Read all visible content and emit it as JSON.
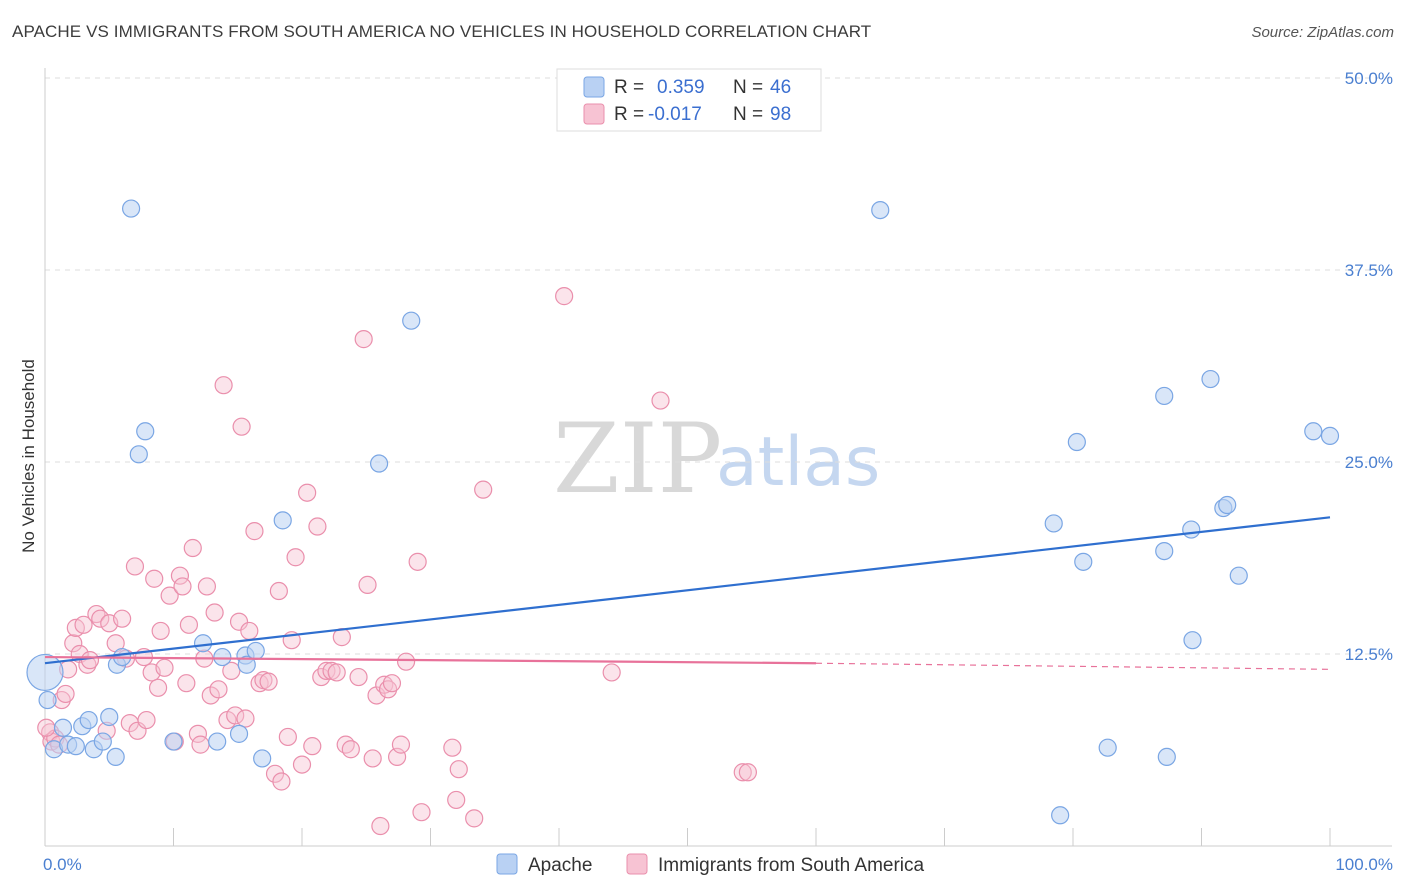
{
  "title": "APACHE VS IMMIGRANTS FROM SOUTH AMERICA NO VEHICLES IN HOUSEHOLD CORRELATION CHART",
  "source": "Source: ZipAtlas.com",
  "watermark": {
    "zip": "ZIP",
    "atlas": "atlas"
  },
  "legend": {
    "r_label": "R =",
    "n_label": "N =",
    "rows": [
      {
        "r": "0.359",
        "n": "46"
      },
      {
        "r": "-0.017",
        "n": "98"
      }
    ]
  },
  "colors": {
    "apache_fill": "#b9d1f3",
    "apache_stroke": "#7aa6e4",
    "apache_line": "#2f6fcf",
    "immig_fill": "#f7c3d3",
    "immig_stroke": "#ea8fac",
    "immig_line": "#e8729a",
    "tick_label": "#4a7fd0",
    "grid": "#dddddd"
  },
  "chart_data": {
    "type": "scatter",
    "xlabel": "",
    "ylabel": "No Vehicles in Household",
    "xlim": [
      0,
      100
    ],
    "ylim": [
      0,
      50
    ],
    "x_tick_labels": [
      "0.0%",
      "100.0%"
    ],
    "y_ticks": [
      12.5,
      25.0,
      37.5,
      50.0
    ],
    "y_tick_labels": [
      "12.5%",
      "25.0%",
      "37.5%",
      "50.0%"
    ],
    "grid": "horizontal dashed",
    "legend_position": "top-center and bottom",
    "series": [
      {
        "name": "Apache",
        "r": 0.359,
        "n": 46,
        "trend": {
          "x": [
            0,
            100
          ],
          "y": [
            11.9,
            21.4
          ]
        },
        "points": [
          [
            0.2,
            9.5
          ],
          [
            0.7,
            6.3
          ],
          [
            1.4,
            7.7
          ],
          [
            1.8,
            6.6
          ],
          [
            2.4,
            6.5
          ],
          [
            2.9,
            7.8
          ],
          [
            3.4,
            8.2
          ],
          [
            3.8,
            6.3
          ],
          [
            4.5,
            6.8
          ],
          [
            5.0,
            8.4
          ],
          [
            5.5,
            5.8
          ],
          [
            5.6,
            11.8
          ],
          [
            6.0,
            12.3
          ],
          [
            6.7,
            41.5
          ],
          [
            7.3,
            25.5
          ],
          [
            7.8,
            27.0
          ],
          [
            10.0,
            6.8
          ],
          [
            12.3,
            13.2
          ],
          [
            13.4,
            6.8
          ],
          [
            13.8,
            12.3
          ],
          [
            15.1,
            7.3
          ],
          [
            15.6,
            12.4
          ],
          [
            15.7,
            11.8
          ],
          [
            16.4,
            12.7
          ],
          [
            16.9,
            5.7
          ],
          [
            18.5,
            21.2
          ],
          [
            26.0,
            24.9
          ],
          [
            28.5,
            34.2
          ],
          [
            65.0,
            41.4
          ],
          [
            79.0,
            2.0
          ],
          [
            78.5,
            21.0
          ],
          [
            80.3,
            26.3
          ],
          [
            80.8,
            18.5
          ],
          [
            82.7,
            6.4
          ],
          [
            87.1,
            29.3
          ],
          [
            87.1,
            19.2
          ],
          [
            87.3,
            5.8
          ],
          [
            89.2,
            20.6
          ],
          [
            89.3,
            13.4
          ],
          [
            90.7,
            30.4
          ],
          [
            91.7,
            22.0
          ],
          [
            92.0,
            22.2
          ],
          [
            92.9,
            17.6
          ],
          [
            98.7,
            27.0
          ],
          [
            100.0,
            26.7
          ],
          [
            0.0,
            11.3
          ]
        ]
      },
      {
        "name": "Immigrants from South America",
        "r": -0.017,
        "n": 98,
        "trend": {
          "x": [
            0,
            60
          ],
          "y": [
            12.3,
            11.9
          ]
        },
        "trend_dashed": {
          "x": [
            60,
            100
          ],
          "y": [
            11.9,
            11.5
          ]
        },
        "points": [
          [
            0.4,
            7.4
          ],
          [
            0.5,
            6.8
          ],
          [
            0.8,
            7.0
          ],
          [
            1.1,
            6.6
          ],
          [
            1.3,
            9.5
          ],
          [
            1.6,
            9.9
          ],
          [
            1.8,
            11.5
          ],
          [
            2.2,
            13.2
          ],
          [
            2.4,
            14.2
          ],
          [
            2.7,
            12.5
          ],
          [
            3.0,
            14.4
          ],
          [
            3.3,
            11.8
          ],
          [
            3.5,
            12.1
          ],
          [
            4.0,
            15.1
          ],
          [
            4.3,
            14.8
          ],
          [
            4.8,
            7.5
          ],
          [
            5.0,
            14.5
          ],
          [
            5.5,
            13.2
          ],
          [
            6.0,
            14.8
          ],
          [
            6.3,
            12.2
          ],
          [
            6.6,
            8.0
          ],
          [
            7.0,
            18.2
          ],
          [
            7.2,
            7.5
          ],
          [
            7.7,
            12.3
          ],
          [
            7.9,
            8.2
          ],
          [
            8.3,
            11.3
          ],
          [
            8.5,
            17.4
          ],
          [
            8.8,
            10.3
          ],
          [
            9.0,
            14.0
          ],
          [
            9.3,
            11.6
          ],
          [
            9.7,
            16.3
          ],
          [
            10.1,
            6.8
          ],
          [
            10.5,
            17.6
          ],
          [
            10.7,
            16.9
          ],
          [
            11.0,
            10.6
          ],
          [
            11.2,
            14.4
          ],
          [
            11.5,
            19.4
          ],
          [
            11.9,
            7.3
          ],
          [
            12.1,
            6.6
          ],
          [
            12.4,
            12.2
          ],
          [
            12.6,
            16.9
          ],
          [
            12.9,
            9.8
          ],
          [
            13.2,
            15.2
          ],
          [
            13.5,
            10.2
          ],
          [
            13.9,
            30.0
          ],
          [
            14.2,
            8.2
          ],
          [
            14.5,
            11.4
          ],
          [
            14.8,
            8.5
          ],
          [
            15.1,
            14.6
          ],
          [
            15.3,
            27.3
          ],
          [
            15.6,
            8.3
          ],
          [
            15.9,
            14.0
          ],
          [
            16.3,
            20.5
          ],
          [
            16.7,
            10.6
          ],
          [
            17.0,
            10.8
          ],
          [
            17.4,
            10.7
          ],
          [
            17.9,
            4.7
          ],
          [
            18.2,
            16.6
          ],
          [
            18.4,
            4.2
          ],
          [
            18.9,
            7.1
          ],
          [
            19.2,
            13.4
          ],
          [
            19.5,
            18.8
          ],
          [
            20.0,
            5.3
          ],
          [
            20.4,
            23.0
          ],
          [
            20.8,
            6.5
          ],
          [
            21.2,
            20.8
          ],
          [
            21.5,
            11.0
          ],
          [
            21.9,
            11.4
          ],
          [
            22.3,
            11.4
          ],
          [
            22.7,
            11.3
          ],
          [
            23.1,
            13.6
          ],
          [
            23.4,
            6.6
          ],
          [
            23.8,
            6.3
          ],
          [
            24.4,
            11.0
          ],
          [
            24.8,
            33.0
          ],
          [
            25.1,
            17.0
          ],
          [
            25.5,
            5.7
          ],
          [
            25.8,
            9.8
          ],
          [
            26.1,
            1.3
          ],
          [
            26.4,
            10.5
          ],
          [
            26.7,
            10.2
          ],
          [
            27.0,
            10.6
          ],
          [
            27.4,
            5.8
          ],
          [
            27.7,
            6.6
          ],
          [
            28.1,
            12.0
          ],
          [
            29.0,
            18.5
          ],
          [
            29.3,
            2.2
          ],
          [
            31.7,
            6.4
          ],
          [
            32.2,
            5.0
          ],
          [
            32.0,
            3.0
          ],
          [
            33.4,
            1.8
          ],
          [
            34.1,
            23.2
          ],
          [
            40.4,
            35.8
          ],
          [
            44.1,
            11.3
          ],
          [
            47.9,
            29.0
          ],
          [
            54.3,
            4.8
          ],
          [
            54.7,
            4.8
          ],
          [
            0.1,
            7.7
          ]
        ]
      }
    ]
  },
  "bottom_legend": [
    "Apache",
    "Immigrants from South America"
  ]
}
